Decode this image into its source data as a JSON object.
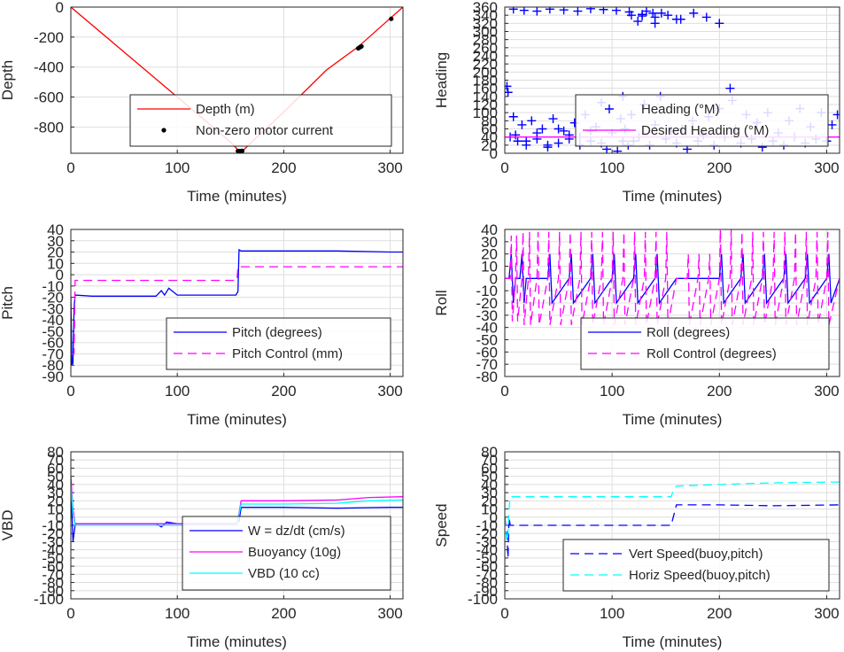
{
  "colors": {
    "blue": "#0000ff",
    "red": "#ff0000",
    "magenta": "#ff00ff",
    "cyan": "#00ffff",
    "black": "#000000",
    "grid": "#dedede",
    "axis": "#262626"
  },
  "chart_data": [
    {
      "id": "depth",
      "type": "line",
      "xlabel": "Time (minutes)",
      "ylabel": "Depth",
      "xlim": [
        0,
        312
      ],
      "ylim": [
        -975,
        0
      ],
      "xticks": [
        0,
        100,
        200,
        300
      ],
      "yticks": [
        0,
        -200,
        -400,
        -600,
        -800
      ],
      "grid": true,
      "legend_position": "center-right",
      "series": [
        {
          "name": "Depth (m)",
          "style": "line",
          "color": "red",
          "x": [
            0,
            40,
            80,
            120,
            150,
            158,
            162,
            170,
            200,
            240,
            270,
            300,
            312
          ],
          "y": [
            0,
            -240,
            -480,
            -720,
            -900,
            -960,
            -955,
            -900,
            -700,
            -420,
            -265,
            -75,
            0
          ]
        },
        {
          "name": "Non-zero motor current",
          "style": "dots",
          "color": "black",
          "x": [
            157,
            158,
            159,
            160,
            161,
            270,
            271,
            272,
            273,
            301
          ],
          "y": [
            -960,
            -962,
            -961,
            -960,
            -959,
            -275,
            -270,
            -266,
            -262,
            -78
          ]
        }
      ]
    },
    {
      "id": "heading",
      "type": "scatter",
      "xlabel": "Time (minutes)",
      "ylabel": "Heading",
      "xlim": [
        0,
        312
      ],
      "ylim": [
        0,
        360
      ],
      "xticks": [
        0,
        100,
        200,
        300
      ],
      "yticks": [
        0,
        20,
        40,
        60,
        80,
        100,
        120,
        140,
        160,
        180,
        200,
        220,
        240,
        260,
        280,
        300,
        320,
        340,
        360
      ],
      "grid": true,
      "legend_position": "center-right",
      "series": [
        {
          "name": "Heading (°M)",
          "style": "plus",
          "color": "blue",
          "x": [
            2,
            3,
            5,
            8,
            12,
            16,
            20,
            25,
            30,
            35,
            40,
            45,
            50,
            55,
            60,
            65,
            70,
            75,
            80,
            85,
            90,
            95,
            100,
            105,
            108,
            110,
            112,
            115,
            118,
            120,
            125,
            130,
            135,
            140,
            145,
            150,
            155,
            160,
            165,
            170,
            175,
            180,
            185,
            190,
            195,
            200,
            205,
            210,
            212,
            215,
            220,
            225,
            230,
            235,
            240,
            245,
            250,
            255,
            260,
            265,
            270,
            275,
            280,
            285,
            290,
            295,
            300,
            305,
            310,
            8,
            18,
            30,
            42,
            55,
            68,
            80,
            92,
            104,
            116,
            128,
            140,
            152,
            164,
            176,
            188,
            200,
            10,
            20,
            30,
            40,
            50,
            60,
            70,
            80,
            90,
            110,
            118,
            124,
            132,
            140,
            146,
            128,
            138,
            160
          ],
          "y": [
            165,
            150,
            40,
            90,
            30,
            70,
            20,
            80,
            35,
            60,
            15,
            85,
            25,
            55,
            45,
            75,
            20,
            95,
            30,
            65,
            125,
            10,
            50,
            5,
            85,
            140,
            60,
            20,
            95,
            30,
            40,
            120,
            20,
            70,
            140,
            35,
            55,
            25,
            60,
            10,
            80,
            30,
            45,
            90,
            20,
            110,
            40,
            160,
            130,
            60,
            25,
            95,
            35,
            75,
            15,
            100,
            30,
            50,
            20,
            80,
            40,
            110,
            25,
            65,
            35,
            100,
            30,
            70,
            95,
            355,
            352,
            350,
            355,
            353,
            350,
            356,
            354,
            352,
            348,
            342,
            335,
            340,
            330,
            345,
            335,
            320,
            45,
            30,
            50,
            20,
            60,
            35,
            40,
            55,
            25,
            30,
            340,
            325,
            350,
            320,
            345,
            338,
            345,
            330
          ]
        },
        {
          "name": "Desired Heading (°M)",
          "style": "line",
          "color": "magenta",
          "x": [
            0,
            50,
            100,
            150,
            200,
            250,
            312
          ],
          "y": [
            40,
            40,
            40,
            40,
            40,
            40,
            40
          ]
        }
      ]
    },
    {
      "id": "pitch",
      "type": "line",
      "xlabel": "Time (minutes)",
      "ylabel": "Pitch",
      "xlim": [
        0,
        312
      ],
      "ylim": [
        -90,
        40
      ],
      "xticks": [
        0,
        100,
        200,
        300
      ],
      "yticks": [
        40,
        30,
        20,
        10,
        0,
        -10,
        -20,
        -30,
        -40,
        -50,
        -60,
        -70,
        -80,
        -90
      ],
      "grid": true,
      "legend_position": "bottom-right",
      "series": [
        {
          "name": "Pitch (degrees)",
          "style": "solid",
          "color": "blue",
          "x": [
            0,
            1,
            2,
            3,
            4,
            20,
            50,
            80,
            85,
            88,
            92,
            100,
            130,
            155,
            157,
            158,
            160,
            200,
            250,
            300,
            312
          ],
          "y": [
            -20,
            -80,
            -78,
            -30,
            -18,
            -19,
            -19,
            -19,
            -14,
            -18,
            -12,
            -18,
            -18,
            -18,
            -15,
            22,
            21,
            21,
            21,
            20,
            20
          ]
        },
        {
          "name": "Pitch Control (mm)",
          "style": "dashed",
          "color": "magenta",
          "x": [
            0,
            3,
            4,
            156,
            157,
            312
          ],
          "y": [
            -70,
            -70,
            -5,
            -5,
            7,
            7
          ]
        }
      ]
    },
    {
      "id": "roll",
      "type": "line",
      "xlabel": "Time (minutes)",
      "ylabel": "Roll",
      "xlim": [
        0,
        312
      ],
      "ylim": [
        -80,
        40
      ],
      "xticks": [
        0,
        100,
        200,
        300
      ],
      "yticks": [
        40,
        30,
        20,
        10,
        0,
        -10,
        -20,
        -30,
        -40,
        -50,
        -60,
        -70,
        -80
      ],
      "grid": true,
      "legend_position": "bottom-right",
      "series": [
        {
          "name": "Roll (degrees)",
          "style": "solid",
          "color": "blue",
          "x": [
            0,
            4,
            6,
            8,
            10,
            14,
            16,
            18,
            20,
            40,
            42,
            44,
            60,
            62,
            64,
            80,
            82,
            84,
            100,
            102,
            104,
            120,
            122,
            124,
            140,
            142,
            144,
            160,
            200,
            202,
            204,
            220,
            222,
            224,
            240,
            242,
            244,
            260,
            262,
            264,
            280,
            282,
            284,
            300,
            302,
            304,
            312
          ],
          "y": [
            0,
            0,
            20,
            -20,
            0,
            0,
            20,
            -20,
            0,
            0,
            20,
            -20,
            0,
            20,
            -20,
            0,
            20,
            -20,
            0,
            20,
            -20,
            0,
            20,
            -20,
            0,
            20,
            -20,
            0,
            0,
            20,
            -20,
            0,
            20,
            -20,
            0,
            20,
            -20,
            0,
            20,
            -20,
            0,
            20,
            -20,
            0,
            20,
            -20,
            0
          ]
        },
        {
          "name": "Roll Control (degrees)",
          "style": "dashed",
          "color": "magenta",
          "x": [
            0,
            5,
            6,
            7,
            10,
            11,
            12,
            16,
            17,
            18,
            22,
            23,
            24,
            30,
            31,
            32,
            40,
            41,
            42,
            50,
            51,
            52,
            60,
            61,
            62,
            70,
            71,
            72,
            80,
            81,
            82,
            90,
            91,
            92,
            100,
            101,
            102,
            110,
            111,
            112,
            120,
            121,
            122,
            130,
            131,
            132,
            140,
            141,
            142,
            150,
            151,
            152,
            160,
            170,
            171,
            172,
            180,
            181,
            182,
            190,
            191,
            192,
            200,
            201,
            202,
            210,
            211,
            212,
            220,
            221,
            222,
            230,
            231,
            232,
            240,
            241,
            242,
            250,
            251,
            252,
            260,
            261,
            262,
            270,
            271,
            272,
            280,
            281,
            282,
            290,
            291,
            292,
            300,
            301,
            302,
            312
          ],
          "y": [
            0,
            0,
            35,
            -35,
            0,
            35,
            -35,
            0,
            38,
            -38,
            0,
            38,
            -38,
            0,
            38,
            -38,
            0,
            38,
            -38,
            0,
            38,
            -38,
            0,
            38,
            -38,
            0,
            38,
            -38,
            0,
            38,
            -38,
            0,
            38,
            -38,
            0,
            38,
            -38,
            0,
            38,
            -38,
            0,
            38,
            -38,
            0,
            38,
            -38,
            0,
            38,
            -38,
            0,
            38,
            -38,
            0,
            0,
            20,
            -38,
            0,
            20,
            -38,
            0,
            20,
            -38,
            0,
            40,
            -38,
            0,
            40,
            -38,
            0,
            38,
            -38,
            0,
            38,
            -38,
            0,
            38,
            -38,
            0,
            38,
            -38,
            0,
            38,
            -38,
            0,
            38,
            -38,
            0,
            38,
            -38,
            0,
            38,
            -38,
            0,
            38,
            -38,
            0
          ]
        }
      ]
    },
    {
      "id": "vbd",
      "type": "line",
      "xlabel": "Time (minutes)",
      "ylabel": "VBD",
      "xlim": [
        0,
        312
      ],
      "ylim": [
        -100,
        80
      ],
      "xticks": [
        0,
        100,
        200,
        300
      ],
      "yticks": [
        80,
        70,
        60,
        50,
        40,
        30,
        20,
        10,
        0,
        -10,
        -20,
        -30,
        -40,
        -50,
        -60,
        -70,
        -80,
        -90,
        -100
      ],
      "grid": true,
      "legend_position": "bottom-right",
      "series": [
        {
          "name": "W = dz/dt (cm/s)",
          "style": "solid",
          "color": "blue",
          "x": [
            0,
            2,
            3,
            4,
            5,
            20,
            50,
            80,
            85,
            90,
            100,
            130,
            155,
            158,
            160,
            200,
            250,
            300,
            312
          ],
          "y": [
            40,
            -30,
            -20,
            -10,
            -8,
            -8,
            -8,
            -8,
            -12,
            -6,
            -8,
            -8,
            -8,
            -5,
            12,
            12,
            11,
            12,
            12
          ]
        },
        {
          "name": "Buoyancy (10g)",
          "style": "solid",
          "color": "magenta",
          "x": [
            0,
            2,
            4,
            156,
            158,
            160,
            200,
            250,
            280,
            312
          ],
          "y": [
            50,
            10,
            -8,
            -8,
            5,
            20,
            20,
            21,
            24,
            25
          ]
        },
        {
          "name": "VBD (10 cc)",
          "style": "solid",
          "color": "cyan",
          "x": [
            0,
            2,
            4,
            156,
            158,
            160,
            200,
            250,
            280,
            312
          ],
          "y": [
            40,
            5,
            -10,
            -10,
            3,
            16,
            16,
            17,
            20,
            21
          ]
        }
      ]
    },
    {
      "id": "speed",
      "type": "line",
      "xlabel": "Time (minutes)",
      "ylabel": "Speed",
      "xlim": [
        0,
        312
      ],
      "ylim": [
        -100,
        80
      ],
      "xticks": [
        0,
        100,
        200,
        300
      ],
      "yticks": [
        80,
        70,
        60,
        50,
        40,
        30,
        20,
        10,
        0,
        -10,
        -20,
        -30,
        -40,
        -50,
        -60,
        -70,
        -80,
        -90,
        -100
      ],
      "grid": true,
      "legend_position": "bottom-right",
      "series": [
        {
          "name": "Vert Speed(buoy,pitch)",
          "style": "dashed",
          "color": "blue",
          "x": [
            0,
            2,
            3,
            4,
            5,
            50,
            100,
            155,
            157,
            160,
            200,
            250,
            312
          ],
          "y": [
            0,
            -20,
            -50,
            0,
            -10,
            -10,
            -10,
            -10,
            0,
            15,
            15,
            14,
            15
          ]
        },
        {
          "name": "Horiz Speed(buoy,pitch)",
          "style": "dashed",
          "color": "cyan",
          "x": [
            0,
            2,
            3,
            4,
            5,
            50,
            100,
            155,
            157,
            160,
            200,
            250,
            312
          ],
          "y": [
            0,
            -30,
            -20,
            10,
            25,
            25,
            25,
            25,
            32,
            38,
            40,
            42,
            43
          ]
        }
      ]
    }
  ]
}
